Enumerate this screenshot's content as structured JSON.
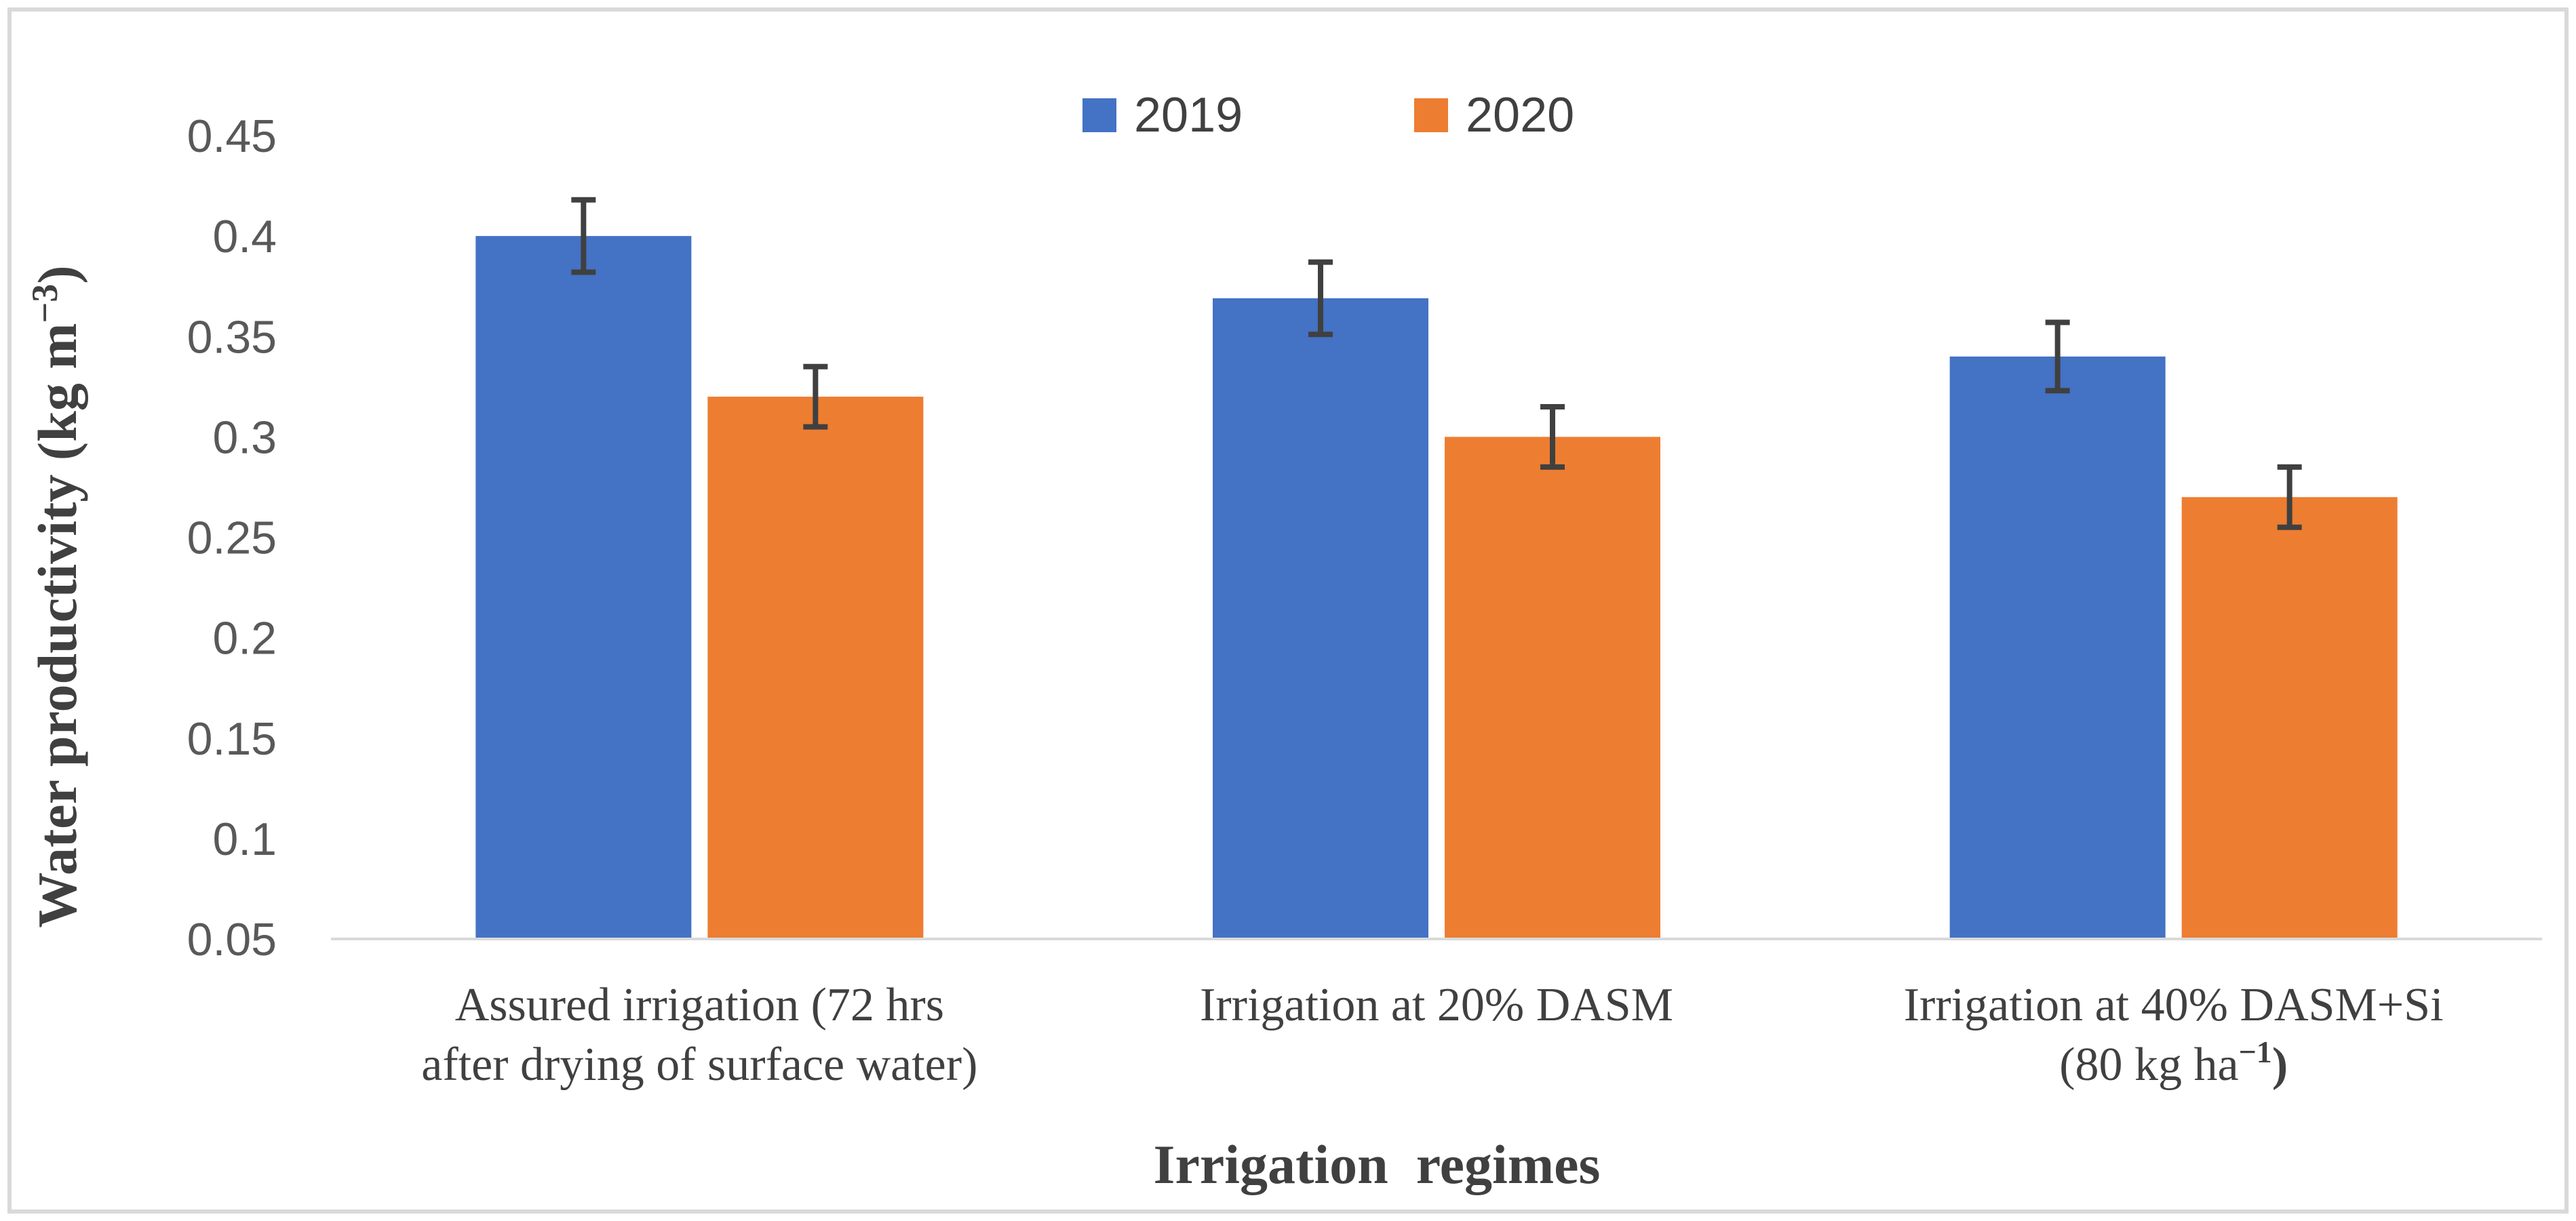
{
  "chart_data": {
    "type": "bar",
    "title": "",
    "ylabel": "Water productivity  (kg m",
    "ylabel_sup": "−3",
    "ylabel_close": ")",
    "xlabel": "Irrigation  regimes",
    "ylim": [
      0.05,
      0.45
    ],
    "yticks": [
      {
        "value": 0.05,
        "label": "0.05"
      },
      {
        "value": 0.1,
        "label": "0.1"
      },
      {
        "value": 0.15,
        "label": "0.15"
      },
      {
        "value": 0.2,
        "label": "0.2"
      },
      {
        "value": 0.25,
        "label": "0.25"
      },
      {
        "value": 0.3,
        "label": "0.3"
      },
      {
        "value": 0.35,
        "label": "0.35"
      },
      {
        "value": 0.4,
        "label": "0.4"
      },
      {
        "value": 0.45,
        "label": "0.45"
      }
    ],
    "categories": [
      {
        "lines": [
          "Assured irrigation (72 hrs",
          "after drying of surface water)"
        ]
      },
      {
        "lines": [
          "Irrigation at 20% DASM"
        ]
      },
      {
        "lines": [
          "Irrigation at 40% DASM+Si",
          "(80 kg ha"
        ],
        "sup": "−1",
        "close": ")"
      }
    ],
    "series": [
      {
        "name": "2019",
        "color": "#4472C4",
        "values": [
          0.4,
          0.369,
          0.34
        ],
        "errors": [
          0.018,
          0.018,
          0.017
        ]
      },
      {
        "name": "2020",
        "color": "#ED7D31",
        "values": [
          0.32,
          0.3,
          0.27
        ],
        "errors": [
          0.015,
          0.015,
          0.015
        ]
      }
    ],
    "legend_position": "top-center",
    "grid": false
  }
}
